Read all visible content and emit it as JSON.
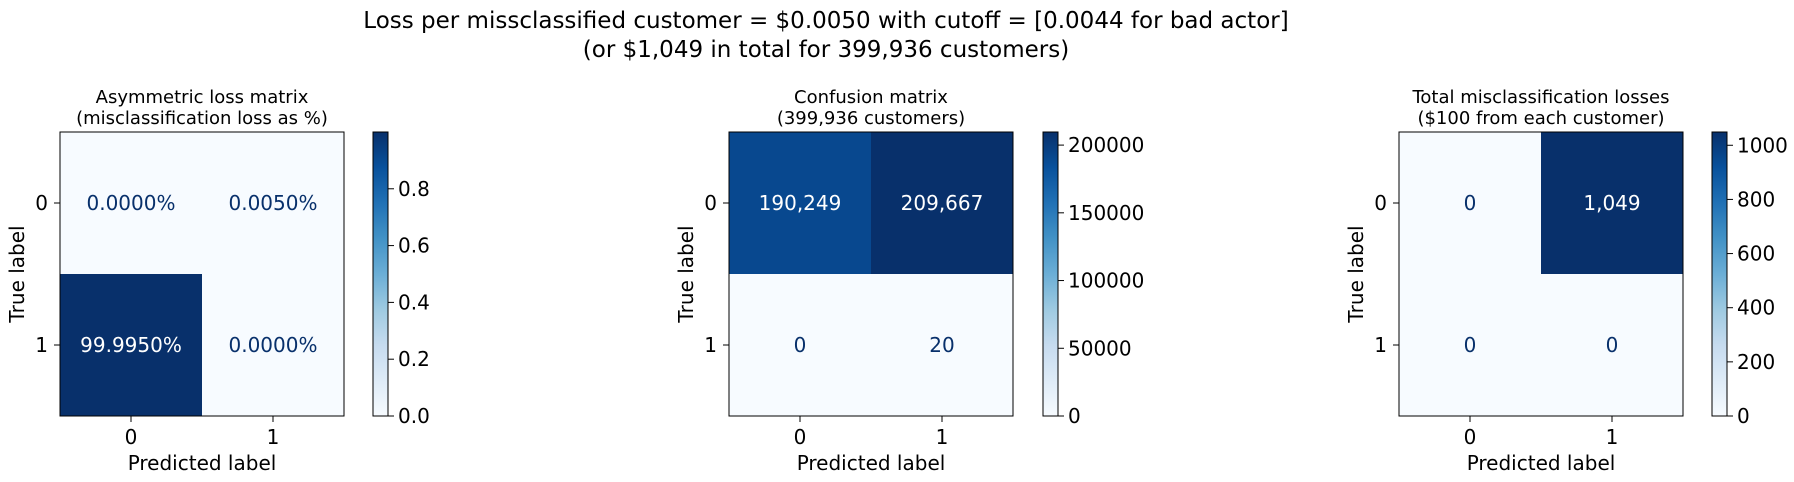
{
  "figure": {
    "suptitle_line1": "Loss per missclassified customer = $0.0050 with cutoff = [0.0044 for bad actor]",
    "suptitle_line2": "(or $1,049 in total for 399,936 customers)"
  },
  "chart_data": [
    {
      "type": "heatmap",
      "title_line1": "Asymmetric loss matrix",
      "title_line2": "(misclassification loss as %)",
      "xlabel": "Predicted label",
      "ylabel": "True label",
      "x_ticks": [
        "0",
        "1"
      ],
      "y_ticks": [
        "0",
        "1"
      ],
      "values": [
        [
          0.0,
          5e-05
        ],
        [
          0.99995,
          0.0
        ]
      ],
      "cell_labels": [
        [
          "0.0000%",
          "0.0050%"
        ],
        [
          "99.9950%",
          "0.0000%"
        ]
      ],
      "colormap": "Blues",
      "vmin": 0,
      "vmax": 0.99995,
      "colorbar_ticks": [
        "0.0",
        "0.2",
        "0.4",
        "0.6",
        "0.8"
      ],
      "colorbar_tick_values": [
        0,
        0.2,
        0.4,
        0.6,
        0.8
      ]
    },
    {
      "type": "heatmap",
      "title_line1": "Confusion matrix",
      "title_line2": "(399,936 customers)",
      "xlabel": "Predicted label",
      "ylabel": "True label",
      "x_ticks": [
        "0",
        "1"
      ],
      "y_ticks": [
        "0",
        "1"
      ],
      "values": [
        [
          190249,
          209667
        ],
        [
          0,
          20
        ]
      ],
      "cell_labels": [
        [
          "190,249",
          "209,667"
        ],
        [
          "0",
          "20"
        ]
      ],
      "colormap": "Blues",
      "vmin": 0,
      "vmax": 209667,
      "colorbar_ticks": [
        "0",
        "50000",
        "100000",
        "150000",
        "200000"
      ],
      "colorbar_tick_values": [
        0,
        50000,
        100000,
        150000,
        200000
      ]
    },
    {
      "type": "heatmap",
      "title_line1": "Total misclassification losses",
      "title_line2": "($100 from each customer)",
      "xlabel": "Predicted label",
      "ylabel": "True label",
      "x_ticks": [
        "0",
        "1"
      ],
      "y_ticks": [
        "0",
        "1"
      ],
      "values": [
        [
          0,
          1049
        ],
        [
          0,
          0
        ]
      ],
      "cell_labels": [
        [
          "0",
          "1,049"
        ],
        [
          "0",
          "0"
        ]
      ],
      "colormap": "Blues",
      "vmin": 0,
      "vmax": 1049,
      "colorbar_ticks": [
        "0",
        "200",
        "400",
        "600",
        "800",
        "1000"
      ],
      "colorbar_tick_values": [
        0,
        200,
        400,
        600,
        800,
        1000
      ]
    }
  ]
}
